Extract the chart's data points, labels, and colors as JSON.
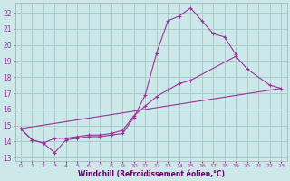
{
  "background_color": "#cce8e8",
  "grid_color": "#aacccc",
  "line_color": "#993399",
  "xlabel": "Windchill (Refroidissement éolien,°C)",
  "xlabel_color": "#660066",
  "xlim": [
    -0.5,
    23.5
  ],
  "ylim": [
    12.8,
    22.6
  ],
  "yticks": [
    13,
    14,
    15,
    16,
    17,
    18,
    19,
    20,
    21,
    22
  ],
  "xticks": [
    0,
    1,
    2,
    3,
    4,
    5,
    6,
    7,
    8,
    9,
    10,
    11,
    12,
    13,
    14,
    15,
    16,
    17,
    18,
    19,
    20,
    21,
    22,
    23
  ],
  "line1_x": [
    0,
    1,
    2,
    3,
    4,
    5,
    6,
    7,
    8,
    9,
    10,
    11,
    12,
    13,
    14,
    15,
    16,
    17,
    18,
    19,
    20,
    21,
    22,
    23
  ],
  "line1_y": [
    14.8,
    14.1,
    13.9,
    13.3,
    14.1,
    14.2,
    14.3,
    14.3,
    14.4,
    14.5,
    15.5,
    16.9,
    19.5,
    21.5,
    21.8,
    22.3,
    21.5,
    20.7,
    20.5,
    19.4,
    null,
    null,
    null,
    null
  ],
  "line2_x": [
    0,
    1,
    2,
    3,
    4,
    5,
    6,
    7,
    8,
    9,
    10,
    11,
    12,
    13,
    14,
    15,
    16,
    17,
    18,
    19,
    20,
    21,
    22,
    23
  ],
  "line2_y": [
    14.8,
    14.1,
    13.9,
    14.2,
    14.2,
    14.3,
    14.4,
    14.4,
    14.5,
    14.7,
    15.6,
    16.2,
    16.8,
    17.2,
    17.6,
    17.8,
    null,
    null,
    null,
    19.3,
    18.5,
    null,
    17.5,
    17.3
  ],
  "line3_x": [
    0,
    23
  ],
  "line3_y": [
    14.8,
    17.3
  ]
}
